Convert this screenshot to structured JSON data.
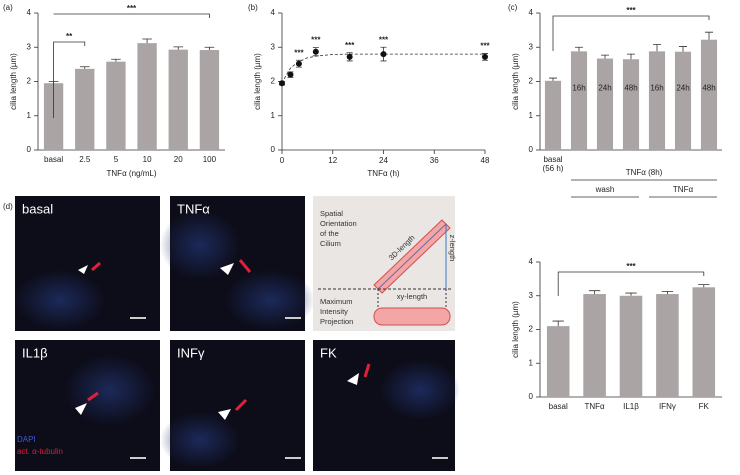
{
  "chart_data": [
    {
      "type": "bar",
      "panel_label": "(a)",
      "ylabel": "cilia length (µm)",
      "xlabel": "TNFα (ng/mL)",
      "categories": [
        "basal",
        "2.5",
        "5",
        "10",
        "20",
        "100"
      ],
      "values": [
        1.95,
        2.37,
        2.58,
        3.12,
        2.93,
        2.92
      ],
      "errors": [
        0.05,
        0.06,
        0.07,
        0.12,
        0.08,
        0.08
      ],
      "color": "#aaa4a4",
      "ylim": [
        0,
        4
      ],
      "yticks": [
        0,
        1,
        2,
        3,
        4
      ],
      "annotations": [
        "**",
        "***"
      ]
    },
    {
      "type": "scatter",
      "panel_label": "(b)",
      "ylabel": "cilia length (µm)",
      "xlabel": "TNFα (h)",
      "x": [
        0,
        2,
        4,
        8,
        16,
        24,
        48
      ],
      "values": [
        1.95,
        2.2,
        2.52,
        2.87,
        2.72,
        2.8,
        2.72
      ],
      "errors": [
        0.05,
        0.08,
        0.1,
        0.12,
        0.12,
        0.2,
        0.1
      ],
      "fit": {
        "x": [
          0,
          1,
          2,
          3,
          4,
          6,
          8,
          12,
          16,
          24,
          48
        ],
        "values": [
          1.95,
          2.19,
          2.39,
          2.49,
          2.58,
          2.69,
          2.74,
          2.79,
          2.8,
          2.8,
          2.8
        ]
      },
      "color": "#111111",
      "xlim": [
        0,
        48
      ],
      "xticks": [
        0,
        12,
        24,
        36,
        48
      ],
      "ylim": [
        0,
        4
      ],
      "yticks": [
        0,
        1,
        2,
        3,
        4
      ],
      "annotations": [
        "***",
        "***",
        "***",
        "***",
        "***"
      ]
    },
    {
      "type": "bar",
      "panel_label": "(c)",
      "ylabel": "cilia length (µm)",
      "categories": [
        "basal (56 h)",
        null,
        null,
        null,
        null,
        null,
        null
      ],
      "bar_labels": [
        null,
        "16h",
        "24h",
        "48h",
        "16h",
        "24h",
        "48h"
      ],
      "group_labels": [
        "TNFα (8h)",
        "wash",
        "TNFα"
      ],
      "values": [
        2.02,
        2.88,
        2.67,
        2.65,
        2.88,
        2.87,
        3.22
      ],
      "errors": [
        0.08,
        0.12,
        0.1,
        0.15,
        0.2,
        0.15,
        0.22
      ],
      "color": "#aaa4a4",
      "ylim": [
        0,
        4
      ],
      "yticks": [
        0,
        1,
        2,
        3,
        4
      ],
      "annotations": [
        "***"
      ]
    },
    {
      "type": "bar",
      "ylabel": "cilia length (µm)",
      "categories": [
        "basal",
        "TNFα",
        "IL1β",
        "IFNγ",
        "FK"
      ],
      "values": [
        2.1,
        3.05,
        3.0,
        3.05,
        3.25
      ],
      "errors": [
        0.15,
        0.1,
        0.08,
        0.08,
        0.08
      ],
      "color": "#aaa4a4",
      "ylim": [
        0,
        4
      ],
      "yticks": [
        0,
        1,
        2,
        3,
        4
      ],
      "annotations": [
        "***"
      ]
    }
  ],
  "figure_d": {
    "panel_label": "(d)",
    "images": [
      "basal",
      "TNFα",
      "IL1β",
      "INFγ",
      "FK"
    ],
    "stain_legend": [
      "DAPI",
      "act. α-tubulin"
    ],
    "diagram": {
      "title_lines": [
        "Spatial",
        "Orientation",
        "of the",
        "Cilium"
      ],
      "length_3d": "3D-length",
      "length_z": "z-length",
      "length_xy": "xy-length",
      "projection_lines": [
        "Maximum",
        "Intensity",
        "Projection"
      ]
    }
  }
}
